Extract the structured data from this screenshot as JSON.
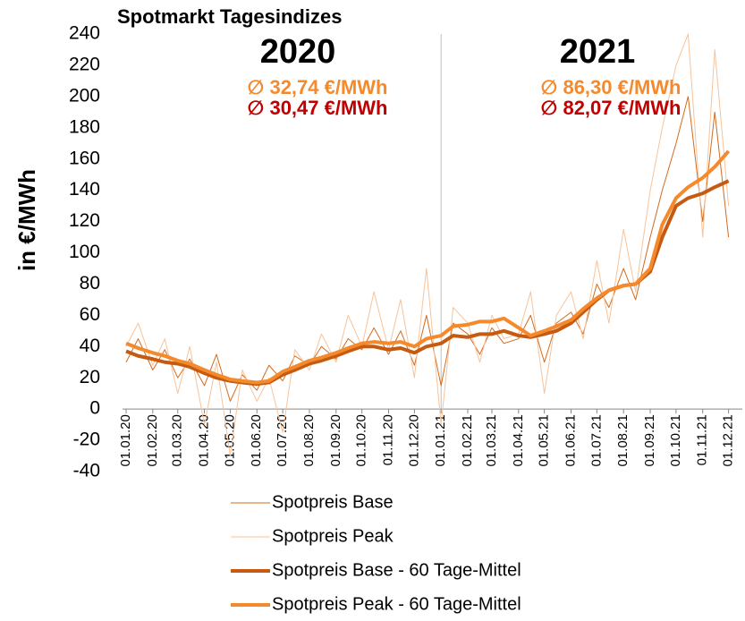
{
  "chart_data": {
    "type": "line",
    "title": "Spotmarkt Tagesindizes",
    "y_label": "in €/MWh",
    "annotations": [
      {
        "text": "2020",
        "color": "#000000"
      },
      {
        "text": "2021",
        "color": "#000000"
      },
      {
        "text": "∅ 32,74 €/MWh",
        "color": "#f58a2c"
      },
      {
        "text": "∅ 30,47 €/MWh",
        "color": "#c00000"
      },
      {
        "text": "∅ 86,30 €/MWh",
        "color": "#f58a2c"
      },
      {
        "text": "∅ 82,07 €/MWh",
        "color": "#c00000"
      }
    ],
    "divider": "01.01.21",
    "xlim": [
      "01.01.20",
      "17.12.21"
    ],
    "xticks": [
      "01.01.20",
      "01.02.20",
      "01.03.20",
      "01.04.20",
      "01.05.20",
      "01.06.20",
      "01.07.20",
      "01.08.20",
      "01.09.20",
      "01.10.20",
      "01.11.20",
      "01.12.20",
      "01.01.21",
      "01.02.21",
      "01.03.21",
      "01.04.21",
      "01.05.21",
      "01.06.21",
      "01.07.21",
      "01.08.21",
      "01.09.21",
      "01.10.21",
      "01.11.21",
      "01.12.21"
    ],
    "ylim": [
      -40,
      240
    ],
    "yticks": [
      -40,
      -20,
      0,
      20,
      40,
      60,
      80,
      100,
      120,
      140,
      160,
      180,
      200,
      220,
      240
    ],
    "x": [
      "01.01.20",
      "15.01.20",
      "01.02.20",
      "15.02.20",
      "01.03.20",
      "15.03.20",
      "01.04.20",
      "15.04.20",
      "01.05.20",
      "15.05.20",
      "01.06.20",
      "15.06.20",
      "01.07.20",
      "15.07.20",
      "01.08.20",
      "15.08.20",
      "01.09.20",
      "15.09.20",
      "01.10.20",
      "15.10.20",
      "01.11.20",
      "15.11.20",
      "01.12.20",
      "15.12.20",
      "01.01.21",
      "15.01.21",
      "01.02.21",
      "15.02.21",
      "01.03.21",
      "15.03.21",
      "01.04.21",
      "15.04.21",
      "01.05.21",
      "15.05.21",
      "01.06.21",
      "15.06.21",
      "01.07.21",
      "15.07.21",
      "01.08.21",
      "15.08.21",
      "01.09.21",
      "15.09.21",
      "01.10.21",
      "15.10.21",
      "01.11.21",
      "15.11.21",
      "01.12.21"
    ],
    "series": [
      {
        "name": "Spotpreis Base",
        "color": "#d46a1e",
        "width": 1,
        "values": [
          30,
          45,
          25,
          38,
          20,
          32,
          15,
          35,
          5,
          22,
          12,
          28,
          18,
          34,
          28,
          40,
          32,
          45,
          38,
          52,
          35,
          50,
          28,
          60,
          15,
          55,
          48,
          35,
          52,
          42,
          45,
          60,
          30,
          55,
          62,
          48,
          80,
          65,
          90,
          70,
          110,
          140,
          170,
          200,
          120,
          190,
          110
        ]
      },
      {
        "name": "Spotpreis Peak",
        "color": "#f7c39a",
        "width": 1,
        "values": [
          40,
          55,
          28,
          45,
          10,
          40,
          -10,
          30,
          -30,
          25,
          5,
          20,
          -15,
          38,
          25,
          48,
          30,
          60,
          40,
          75,
          38,
          70,
          20,
          90,
          -10,
          65,
          55,
          30,
          60,
          45,
          48,
          75,
          10,
          60,
          75,
          45,
          95,
          55,
          115,
          75,
          140,
          180,
          220,
          240,
          110,
          230,
          130
        ]
      },
      {
        "name": "Spotpreis Base - 60 Tage-Mittel",
        "color": "#c55a11",
        "width": 4,
        "values": [
          37,
          34,
          32,
          30,
          29,
          27,
          23,
          20,
          18,
          17,
          16,
          17,
          22,
          25,
          29,
          31,
          34,
          37,
          40,
          40,
          38,
          39,
          36,
          40,
          42,
          47,
          46,
          48,
          48,
          50,
          47,
          46,
          48,
          50,
          55,
          62,
          70,
          76,
          79,
          80,
          88,
          110,
          130,
          135,
          138,
          142,
          146
        ]
      },
      {
        "name": "Spotpreis Peak - 60 Tage-Mittel",
        "color": "#f58a2c",
        "width": 4,
        "values": [
          42,
          39,
          36,
          34,
          31,
          29,
          25,
          22,
          19,
          18,
          17,
          18,
          24,
          27,
          31,
          33,
          36,
          39,
          42,
          43,
          42,
          43,
          40,
          45,
          47,
          53,
          54,
          56,
          56,
          58,
          52,
          47,
          50,
          53,
          57,
          64,
          71,
          76,
          79,
          80,
          90,
          118,
          135,
          142,
          148,
          155,
          165
        ]
      }
    ]
  }
}
